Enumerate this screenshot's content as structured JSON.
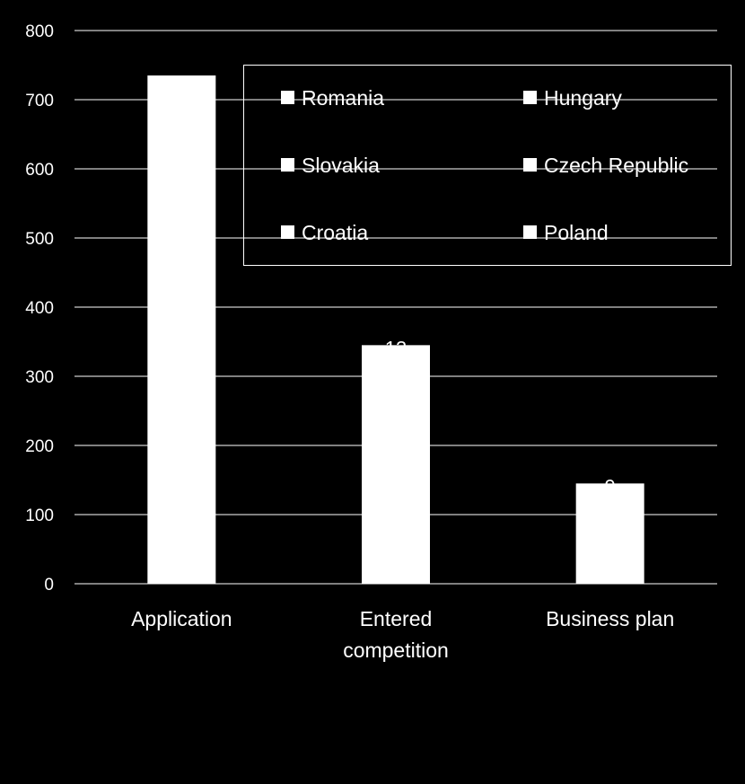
{
  "chart_data": {
    "type": "bar",
    "title": "",
    "xlabel": "",
    "ylabel": "",
    "categories": [
      "Application",
      "Entered competition",
      "Business plan"
    ],
    "category_label_lines": [
      [
        "Application"
      ],
      [
        "Entered",
        "competition"
      ],
      [
        "Business plan"
      ]
    ],
    "series": [
      {
        "values": [
          735,
          345,
          145
        ]
      }
    ],
    "partial_data_labels": [
      "",
      "13",
      "9"
    ],
    "ylim": [
      0,
      800
    ],
    "yticks": [
      0,
      100,
      200,
      300,
      400,
      500,
      600,
      700,
      800
    ],
    "grid": true,
    "legend": {
      "position": "top-right",
      "entries": [
        "Romania",
        "Hungary",
        "Slovakia",
        "Czech Republic",
        "Croatia",
        "Poland"
      ]
    },
    "colors": {
      "background": "#000000",
      "bar": "#ffffff",
      "grid": "#ffffff",
      "text": "#ffffff"
    }
  }
}
